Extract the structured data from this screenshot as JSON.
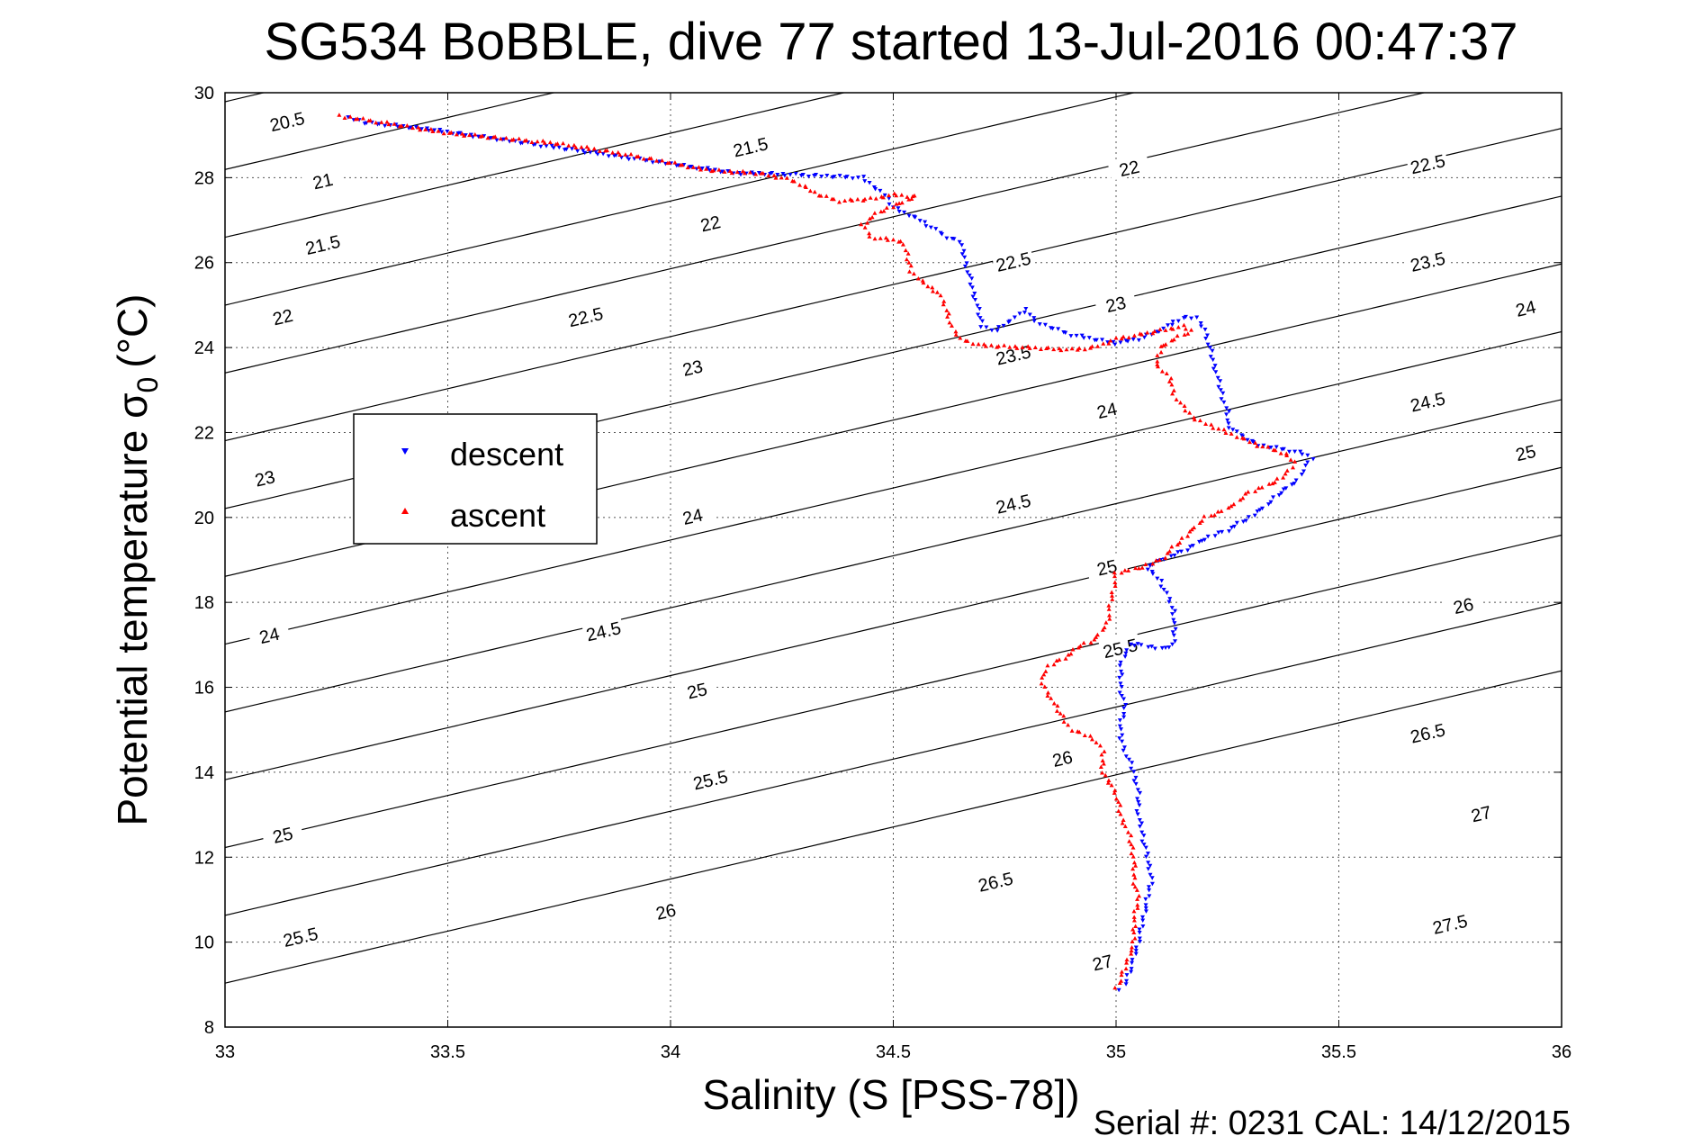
{
  "chart_data": {
    "type": "scatter",
    "title": "SG534 BoBBLE, dive 77 started 13-Jul-2016 00:47:37",
    "xlabel": "Salinity (S [PSS-78])",
    "ylabel": "Potential temperature σ",
    "ylabel_sub": "0",
    "ylabel_unit": "(°C)",
    "xlim": [
      33,
      36
    ],
    "ylim": [
      8,
      30
    ],
    "xticks": [
      33,
      33.5,
      34,
      34.5,
      35,
      35.5,
      36
    ],
    "xtick_labels": [
      "33",
      "33.5",
      "34",
      "34.5",
      "35",
      "35.5",
      "36"
    ],
    "yticks": [
      8,
      10,
      12,
      14,
      16,
      18,
      20,
      22,
      24,
      26,
      28,
      30
    ],
    "ytick_labels": [
      "8",
      "10",
      "12",
      "14",
      "16",
      "18",
      "20",
      "22",
      "24",
      "26",
      "28",
      "30"
    ],
    "grid": true,
    "legend_position": "left",
    "contour_levels": [
      20.5,
      21,
      21.5,
      22,
      22.5,
      23,
      23.5,
      24,
      24.5,
      25,
      25.5,
      26,
      26.5,
      27,
      27.5
    ],
    "contour_labels": [
      {
        "text": "20.5",
        "s": 33.14,
        "t": 29.3
      },
      {
        "text": "21",
        "s": 33.22,
        "t": 27.9
      },
      {
        "text": "21.5",
        "s": 33.22,
        "t": 26.4
      },
      {
        "text": "22",
        "s": 33.13,
        "t": 24.7
      },
      {
        "text": "23",
        "s": 33.09,
        "t": 20.9
      },
      {
        "text": "24",
        "s": 33.1,
        "t": 17.2
      },
      {
        "text": "25",
        "s": 33.13,
        "t": 12.5
      },
      {
        "text": "25.5",
        "s": 33.17,
        "t": 10.1
      },
      {
        "text": "21.5",
        "s": 34.18,
        "t": 28.7
      },
      {
        "text": "22",
        "s": 34.09,
        "t": 26.9
      },
      {
        "text": "22.5",
        "s": 33.81,
        "t": 24.7
      },
      {
        "text": "23",
        "s": 34.05,
        "t": 23.5
      },
      {
        "text": "24",
        "s": 34.05,
        "t": 20.0
      },
      {
        "text": "24.5",
        "s": 33.85,
        "t": 17.3
      },
      {
        "text": "25",
        "s": 34.06,
        "t": 15.9
      },
      {
        "text": "25.5",
        "s": 34.09,
        "t": 13.8
      },
      {
        "text": "26",
        "s": 33.99,
        "t": 10.7
      },
      {
        "text": "22",
        "s": 35.03,
        "t": 28.2
      },
      {
        "text": "22.5",
        "s": 34.77,
        "t": 26.0
      },
      {
        "text": "23",
        "s": 35.0,
        "t": 25.0
      },
      {
        "text": "23.5",
        "s": 34.77,
        "t": 23.8
      },
      {
        "text": "24",
        "s": 34.98,
        "t": 22.5
      },
      {
        "text": "24.5",
        "s": 34.77,
        "t": 20.3
      },
      {
        "text": "25",
        "s": 34.98,
        "t": 18.8
      },
      {
        "text": "25.5",
        "s": 35.01,
        "t": 16.9
      },
      {
        "text": "26",
        "s": 34.88,
        "t": 14.3
      },
      {
        "text": "26.5",
        "s": 34.73,
        "t": 11.4
      },
      {
        "text": "27",
        "s": 34.97,
        "t": 9.5
      },
      {
        "text": "22.5",
        "s": 35.7,
        "t": 28.3
      },
      {
        "text": "23.5",
        "s": 35.7,
        "t": 26.0
      },
      {
        "text": "24",
        "s": 35.92,
        "t": 24.9
      },
      {
        "text": "24.5",
        "s": 35.7,
        "t": 22.7
      },
      {
        "text": "25",
        "s": 35.92,
        "t": 21.5
      },
      {
        "text": "26",
        "s": 35.78,
        "t": 17.9
      },
      {
        "text": "26.5",
        "s": 35.7,
        "t": 14.9
      },
      {
        "text": "27",
        "s": 35.82,
        "t": 13.0
      },
      {
        "text": "27.5",
        "s": 35.75,
        "t": 10.4
      }
    ],
    "series": [
      {
        "name": "descent",
        "color": "#0000ff",
        "marker": "triangle-down",
        "points": [
          [
            33.28,
            29.4
          ],
          [
            33.3,
            29.35
          ],
          [
            33.31,
            29.3
          ],
          [
            33.45,
            29.15
          ],
          [
            34.15,
            28.1
          ],
          [
            34.18,
            28.1
          ],
          [
            34.2,
            28.1
          ],
          [
            34.32,
            28.05
          ],
          [
            34.43,
            28.0
          ],
          [
            34.48,
            27.6
          ],
          [
            34.5,
            27.3
          ],
          [
            34.56,
            27.0
          ],
          [
            34.62,
            26.6
          ],
          [
            34.65,
            26.5
          ],
          [
            34.7,
            24.5
          ],
          [
            34.73,
            24.4
          ],
          [
            34.8,
            24.9
          ],
          [
            34.82,
            24.6
          ],
          [
            34.9,
            24.3
          ],
          [
            34.95,
            24.2
          ],
          [
            35.0,
            24.1
          ],
          [
            35.05,
            24.2
          ],
          [
            35.1,
            24.4
          ],
          [
            35.13,
            24.6
          ],
          [
            35.15,
            24.7
          ],
          [
            35.18,
            24.7
          ],
          [
            35.2,
            24.4
          ],
          [
            35.21,
            24.0
          ],
          [
            35.22,
            23.6
          ],
          [
            35.23,
            23.2
          ],
          [
            35.24,
            22.8
          ],
          [
            35.25,
            22.5
          ],
          [
            35.25,
            22.2
          ],
          [
            35.27,
            22.0
          ],
          [
            35.32,
            21.7
          ],
          [
            35.38,
            21.6
          ],
          [
            35.42,
            21.5
          ],
          [
            35.44,
            21.4
          ],
          [
            35.42,
            21.1
          ],
          [
            35.4,
            20.8
          ],
          [
            35.37,
            20.6
          ],
          [
            35.34,
            20.3
          ],
          [
            35.3,
            20.0
          ],
          [
            35.25,
            19.7
          ],
          [
            35.2,
            19.5
          ],
          [
            35.15,
            19.2
          ],
          [
            35.1,
            19.0
          ],
          [
            35.07,
            18.8
          ],
          [
            35.1,
            18.5
          ],
          [
            35.13,
            17.8
          ],
          [
            35.13,
            17.0
          ],
          [
            35.1,
            16.9
          ],
          [
            35.06,
            17.0
          ],
          [
            35.03,
            17.0
          ],
          [
            35.01,
            16.5
          ],
          [
            35.01,
            16.0
          ],
          [
            35.02,
            15.5
          ],
          [
            35.01,
            15.1
          ],
          [
            35.01,
            14.8
          ],
          [
            35.02,
            14.5
          ],
          [
            35.04,
            14.0
          ],
          [
            35.05,
            13.5
          ],
          [
            35.05,
            13.0
          ],
          [
            35.06,
            12.5
          ],
          [
            35.07,
            12.0
          ],
          [
            35.08,
            11.5
          ],
          [
            35.07,
            11.0
          ],
          [
            35.06,
            10.5
          ],
          [
            35.05,
            10.0
          ],
          [
            35.04,
            9.6
          ],
          [
            35.03,
            9.3
          ],
          [
            35.02,
            9.0
          ],
          [
            35.01,
            8.9
          ]
        ]
      },
      {
        "name": "ascent",
        "color": "#ff0000",
        "marker": "triangle-up",
        "points": [
          [
            33.26,
            29.45
          ],
          [
            33.27,
            29.42
          ],
          [
            33.28,
            29.42
          ],
          [
            33.5,
            29.05
          ],
          [
            33.75,
            28.8
          ],
          [
            33.87,
            28.6
          ],
          [
            33.95,
            28.45
          ],
          [
            34.0,
            28.35
          ],
          [
            34.07,
            28.2
          ],
          [
            34.12,
            28.15
          ],
          [
            34.2,
            28.1
          ],
          [
            34.25,
            28.0
          ],
          [
            34.28,
            27.9
          ],
          [
            34.3,
            27.8
          ],
          [
            34.33,
            27.6
          ],
          [
            34.38,
            27.45
          ],
          [
            34.45,
            27.5
          ],
          [
            34.5,
            27.6
          ],
          [
            34.55,
            27.55
          ],
          [
            34.47,
            27.2
          ],
          [
            34.43,
            26.9
          ],
          [
            34.45,
            26.6
          ],
          [
            34.52,
            26.5
          ],
          [
            34.53,
            26.2
          ],
          [
            34.54,
            25.8
          ],
          [
            34.57,
            25.5
          ],
          [
            34.6,
            25.3
          ],
          [
            34.62,
            24.9
          ],
          [
            34.63,
            24.5
          ],
          [
            34.65,
            24.2
          ],
          [
            34.7,
            24.05
          ],
          [
            34.8,
            24.0
          ],
          [
            34.9,
            23.95
          ],
          [
            34.95,
            24.0
          ],
          [
            35.0,
            24.2
          ],
          [
            35.05,
            24.3
          ],
          [
            35.1,
            24.4
          ],
          [
            35.15,
            24.5
          ],
          [
            35.17,
            24.4
          ],
          [
            35.13,
            24.2
          ],
          [
            35.1,
            24.0
          ],
          [
            35.09,
            23.6
          ],
          [
            35.12,
            23.3
          ],
          [
            35.13,
            22.9
          ],
          [
            35.15,
            22.6
          ],
          [
            35.18,
            22.3
          ],
          [
            35.25,
            22.0
          ],
          [
            35.32,
            21.7
          ],
          [
            35.38,
            21.5
          ],
          [
            35.4,
            21.3
          ],
          [
            35.38,
            21.0
          ],
          [
            35.35,
            20.8
          ],
          [
            35.3,
            20.6
          ],
          [
            35.25,
            20.2
          ],
          [
            35.2,
            20.0
          ],
          [
            35.15,
            19.5
          ],
          [
            35.1,
            19.0
          ],
          [
            35.05,
            18.8
          ],
          [
            35.0,
            18.7
          ],
          [
            34.98,
            17.5
          ],
          [
            34.95,
            17.1
          ],
          [
            34.92,
            17.0
          ],
          [
            34.9,
            16.8
          ],
          [
            34.85,
            16.5
          ],
          [
            34.83,
            16.2
          ],
          [
            34.85,
            15.8
          ],
          [
            34.88,
            15.3
          ],
          [
            34.9,
            15.0
          ],
          [
            34.95,
            14.8
          ],
          [
            34.97,
            14.5
          ],
          [
            34.97,
            14.0
          ],
          [
            35.0,
            13.5
          ],
          [
            35.01,
            13.0
          ],
          [
            35.03,
            12.5
          ],
          [
            35.04,
            12.0
          ],
          [
            35.04,
            11.5
          ],
          [
            35.05,
            11.0
          ],
          [
            35.04,
            10.5
          ],
          [
            35.04,
            10.0
          ],
          [
            35.03,
            9.7
          ],
          [
            35.02,
            9.4
          ],
          [
            35.01,
            9.1
          ],
          [
            35.0,
            8.95
          ]
        ]
      }
    ]
  },
  "legend": {
    "descent_label": "descent",
    "ascent_label": "ascent"
  },
  "footer": {
    "serial_text": "Serial #: 0231  CAL: 14/12/2015"
  }
}
